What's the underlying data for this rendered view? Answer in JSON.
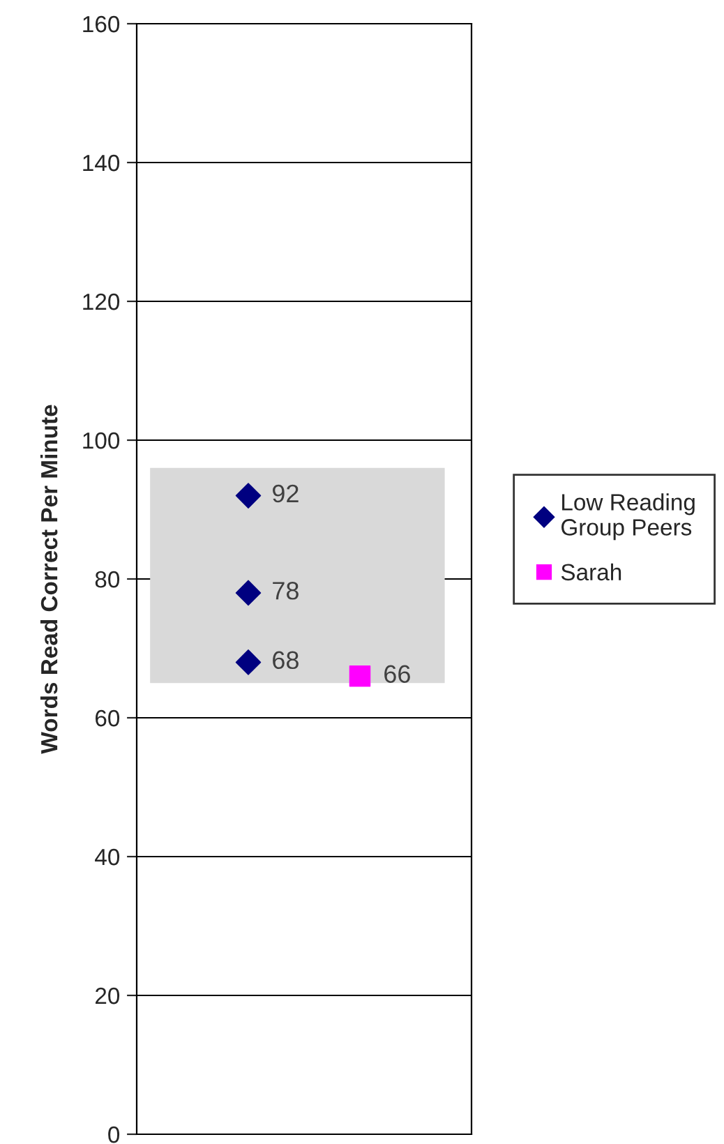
{
  "chart_data": {
    "type": "scatter",
    "ylabel": "Words Read Correct Per Minute",
    "categories": [
      null,
      null
    ],
    "ylim": [
      0,
      160
    ],
    "yticks": [
      0,
      20,
      40,
      60,
      80,
      100,
      120,
      140,
      160
    ],
    "series": [
      {
        "name": "Low Reading Group Peers",
        "color": "#000080",
        "marker": "diamond",
        "values": [
          92,
          null
        ]
      },
      {
        "color": "#000080",
        "marker": "diamond",
        "values": [
          78,
          null
        ]
      },
      {
        "color": "#000080",
        "marker": "diamond",
        "values": [
          68,
          null
        ]
      },
      {
        "name": "Sarah",
        "color": "#ff00ff",
        "marker": "square",
        "values": [
          null,
          66
        ]
      }
    ],
    "bands": [
      {
        "axis": "y",
        "from": 65,
        "to": 96,
        "color": "#d9d9d9"
      }
    ],
    "data_labels": true,
    "grid": "y",
    "legend": "right",
    "tick_labels": "y"
  }
}
